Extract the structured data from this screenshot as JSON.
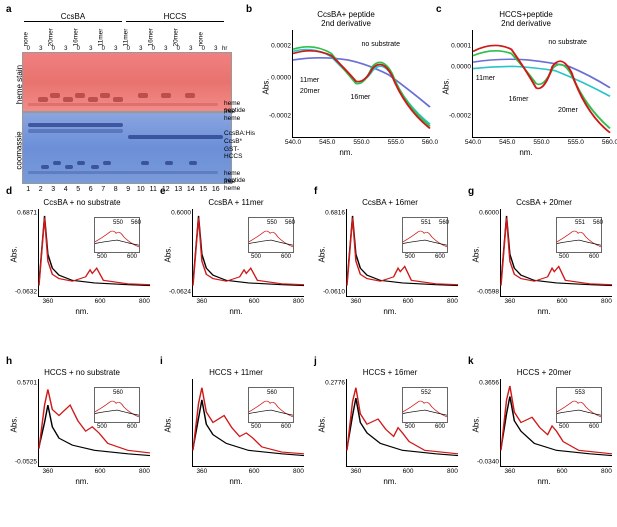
{
  "panels": {
    "a_label": "a",
    "b_label": "b",
    "c_label": "c",
    "d_label": "d",
    "e_label": "e",
    "f_label": "f",
    "g_label": "g",
    "h_label": "h",
    "i_label": "i",
    "j_label": "j",
    "k_label": "k"
  },
  "gel": {
    "group1": "CcsBA",
    "group2": "HCCS",
    "conditions": [
      "none",
      "20mer",
      "16mer",
      "11mer",
      "11mer",
      "16mer",
      "20mer",
      "none"
    ],
    "time_header": "hr",
    "times": [
      "0",
      "3",
      "0",
      "3",
      "0",
      "3",
      "0",
      "3",
      "0",
      "3",
      "0",
      "3",
      "0",
      "3",
      "0",
      "3"
    ],
    "side1": "heme stain",
    "side2": "coomassie",
    "lane_numbers": [
      "1",
      "2",
      "3",
      "4",
      "5",
      "6",
      "7",
      "8",
      "9",
      "10",
      "11",
      "12",
      "13",
      "14",
      "15",
      "16"
    ],
    "annot": {
      "heme_peptide": "heme peptide",
      "free_heme": "free heme",
      "ccsba_his": "CcsBA:His",
      "ccsb": "CcsB*",
      "gst_hccs": "GST-HCCS"
    }
  },
  "panel_b": {
    "title": "CcsBA+ peptide",
    "subtitle": "2nd derivative",
    "ylabel": "Abs.",
    "xlabel": "nm.",
    "xticks": [
      "540.0",
      "545.0",
      "550.0",
      "555.0",
      "560.0"
    ],
    "yticks": [
      "0.0002",
      "0.0000",
      "-0.0002"
    ],
    "series": {
      "no_substrate": {
        "label": "no substrate",
        "color": "#6a6fd8"
      },
      "11mer": {
        "label": "11mer",
        "color": "#28c4c8"
      },
      "16mer": {
        "label": "16mer",
        "color": "#2fbf4a"
      },
      "20mer": {
        "label": "20mer",
        "color": "#d01818"
      }
    }
  },
  "panel_c": {
    "title": "HCCS+peptide",
    "subtitle": "2nd derivative",
    "ylabel": "Abs.",
    "xlabel": "nm.",
    "xticks": [
      "540.0",
      "545.0",
      "550.0",
      "555.0",
      "560.0"
    ],
    "yticks": [
      "0.0001",
      "0.0000",
      "-0.0002"
    ],
    "series": {
      "no_substrate": {
        "label": "no substrate",
        "color": "#6a6fd8"
      },
      "11mer": {
        "label": "11mer",
        "color": "#28c4c8"
      },
      "16mer": {
        "label": "16mer",
        "color": "#2fbf4a"
      },
      "20mer": {
        "label": "20mer",
        "color": "#d01818"
      }
    }
  },
  "spectra_common": {
    "ylabel": "Abs.",
    "xlabel": "nm.",
    "xticks": [
      "360",
      "600",
      "800"
    ],
    "colors": {
      "oxidized": "#000000",
      "reduced": "#d01818"
    }
  },
  "panel_d": {
    "title": "CcsBA + no substrate",
    "y_top": "0.6871",
    "y_bot": "-0.0632",
    "inset_peaks": [
      "550",
      "560"
    ]
  },
  "panel_e": {
    "title": "CcsBA + 11mer",
    "y_top": "0.6000",
    "y_bot": "-0.0624",
    "inset_peaks": [
      "550",
      "560"
    ]
  },
  "panel_f": {
    "title": "CcsBA + 16mer",
    "y_top": "0.6816",
    "y_bot": "-0.0610",
    "inset_peaks": [
      "551",
      "560"
    ]
  },
  "panel_g": {
    "title": "CcsBA + 20mer",
    "y_top": "0.6000",
    "y_bot": "-0.0598",
    "inset_peaks": [
      "551",
      "560"
    ]
  },
  "panel_h": {
    "title": "HCCS + no substrate",
    "y_top": "0.5701",
    "y_bot": "-0.0525",
    "inset_peaks": [
      "560"
    ]
  },
  "panel_i": {
    "title": "HCCS + 11mer",
    "y_top": "",
    "y_bot": "",
    "inset_peaks": [
      "560"
    ]
  },
  "panel_j": {
    "title": "HCCS + 16mer",
    "y_top": "0.2776",
    "y_bot": "",
    "inset_peaks": [
      "552"
    ]
  },
  "panel_k": {
    "title": "HCCS + 20mer",
    "y_top": "0.3656",
    "y_bot": "-0.0340",
    "inset_peaks": [
      "553"
    ]
  },
  "inset_x": {
    "lo": "500",
    "hi": "600"
  }
}
